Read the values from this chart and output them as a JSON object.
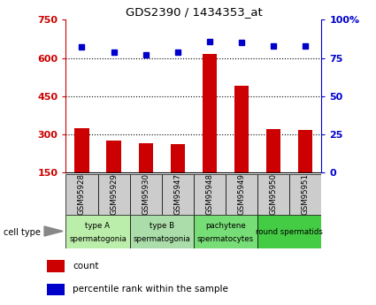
{
  "title": "GDS2390 / 1434353_at",
  "samples": [
    "GSM95928",
    "GSM95929",
    "GSM95930",
    "GSM95947",
    "GSM95948",
    "GSM95949",
    "GSM95950",
    "GSM95951"
  ],
  "counts": [
    325,
    275,
    265,
    262,
    615,
    490,
    320,
    315
  ],
  "percentiles": [
    82,
    79,
    77,
    79,
    86,
    85,
    83,
    83
  ],
  "cell_types": [
    {
      "label_top": "type A",
      "label_bot": "spermatogonia",
      "span": [
        0,
        1
      ],
      "color": "#bbeeaa"
    },
    {
      "label_top": "type B",
      "label_bot": "spermatogonia",
      "span": [
        2,
        3
      ],
      "color": "#aaddaa"
    },
    {
      "label_top": "pachytene",
      "label_bot": "spermatocytes",
      "span": [
        4,
        5
      ],
      "color": "#77dd77"
    },
    {
      "label_top": "round spermatids",
      "label_bot": "",
      "span": [
        6,
        7
      ],
      "color": "#44cc44"
    }
  ],
  "ylim_left": [
    150,
    750
  ],
  "ylim_right": [
    0,
    100
  ],
  "yticks_left": [
    150,
    300,
    450,
    600,
    750
  ],
  "ytick_labels_left": [
    "150",
    "300",
    "450",
    "600",
    "750"
  ],
  "yticks_right": [
    0,
    25,
    50,
    75,
    100
  ],
  "ytick_labels_right": [
    "0",
    "25",
    "50",
    "75",
    "100%"
  ],
  "grid_yticks": [
    300,
    450,
    600
  ],
  "bar_color": "#cc0000",
  "dot_color": "#0000cc",
  "sample_bg_color": "#cccccc",
  "legend_items": [
    {
      "color": "#cc0000",
      "label": "count"
    },
    {
      "color": "#0000cc",
      "label": "percentile rank within the sample"
    }
  ]
}
